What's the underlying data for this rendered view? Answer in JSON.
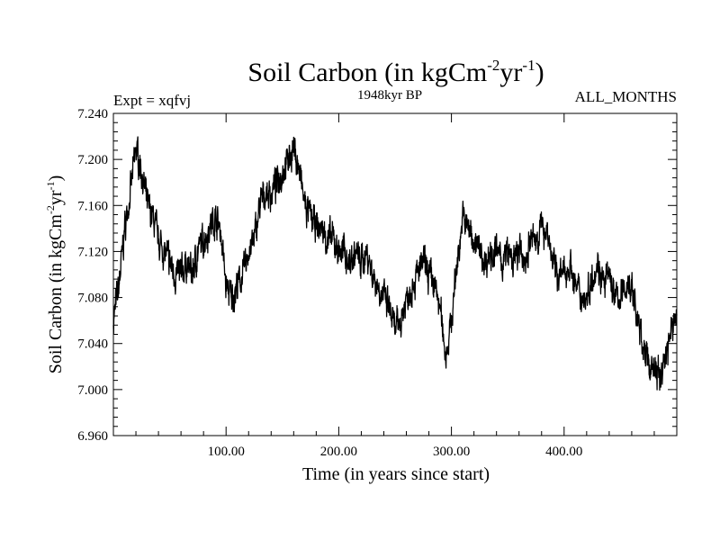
{
  "chart_data": {
    "type": "line",
    "title_main": "Soil Carbon (in kgCm",
    "title_exp1": "-2",
    "title_mid": "yr",
    "title_exp2": "-1",
    "title_end": ")",
    "subtitle": "1948kyr BP",
    "expt_label": "Expt = xqfvj",
    "months_label": "ALL_MONTHS",
    "xlabel": "Time (in years since start)",
    "ylabel_main": "Soil Carbon (in kgCm",
    "ylabel_exp1": "-2",
    "ylabel_mid": "yr",
    "ylabel_exp2": "-1",
    "ylabel_end": ")",
    "xlim": [
      0,
      500
    ],
    "ylim": [
      6.96,
      7.24
    ],
    "x_ticks": [
      100,
      200,
      300,
      400
    ],
    "x_tick_labels": [
      "100.00",
      "200.00",
      "300.00",
      "400.00"
    ],
    "y_ticks": [
      6.96,
      7.0,
      7.04,
      7.08,
      7.12,
      7.16,
      7.2,
      7.24
    ],
    "y_tick_labels": [
      "6.960",
      "7.000",
      "7.040",
      "7.080",
      "7.120",
      "7.160",
      "7.200",
      "7.240"
    ],
    "series": [
      {
        "name": "soil_carbon",
        "x": [
          0,
          5,
          10,
          15,
          20,
          25,
          30,
          35,
          40,
          45,
          50,
          55,
          60,
          65,
          70,
          75,
          80,
          85,
          90,
          95,
          100,
          105,
          110,
          115,
          120,
          125,
          130,
          135,
          140,
          145,
          150,
          155,
          160,
          165,
          170,
          175,
          180,
          185,
          190,
          195,
          200,
          205,
          210,
          215,
          220,
          225,
          230,
          235,
          240,
          245,
          250,
          255,
          260,
          265,
          270,
          275,
          280,
          285,
          290,
          295,
          300,
          305,
          310,
          315,
          320,
          325,
          330,
          335,
          340,
          345,
          350,
          355,
          360,
          365,
          370,
          375,
          380,
          385,
          390,
          395,
          400,
          405,
          410,
          415,
          420,
          425,
          430,
          435,
          440,
          445,
          450,
          455,
          460,
          465,
          470,
          475,
          480,
          485,
          490,
          495,
          500
        ],
        "y": [
          7.06,
          7.09,
          7.14,
          7.17,
          7.21,
          7.19,
          7.16,
          7.15,
          7.13,
          7.12,
          7.11,
          7.1,
          7.1,
          7.11,
          7.1,
          7.12,
          7.13,
          7.14,
          7.15,
          7.14,
          7.09,
          7.08,
          7.09,
          7.1,
          7.12,
          7.13,
          7.16,
          7.17,
          7.17,
          7.18,
          7.19,
          7.2,
          7.21,
          7.19,
          7.16,
          7.15,
          7.14,
          7.14,
          7.13,
          7.13,
          7.12,
          7.12,
          7.11,
          7.12,
          7.11,
          7.12,
          7.1,
          7.09,
          7.08,
          7.07,
          7.05,
          7.06,
          7.08,
          7.09,
          7.1,
          7.11,
          7.1,
          7.09,
          7.07,
          7.03,
          7.06,
          7.11,
          7.15,
          7.14,
          7.13,
          7.12,
          7.11,
          7.12,
          7.12,
          7.11,
          7.12,
          7.11,
          7.12,
          7.11,
          7.13,
          7.13,
          7.14,
          7.14,
          7.11,
          7.1,
          7.1,
          7.11,
          7.09,
          7.08,
          7.08,
          7.1,
          7.11,
          7.09,
          7.1,
          7.08,
          7.08,
          7.09,
          7.09,
          7.06,
          7.04,
          7.02,
          7.02,
          7.01,
          7.03,
          7.05,
          7.07
        ]
      }
    ]
  }
}
